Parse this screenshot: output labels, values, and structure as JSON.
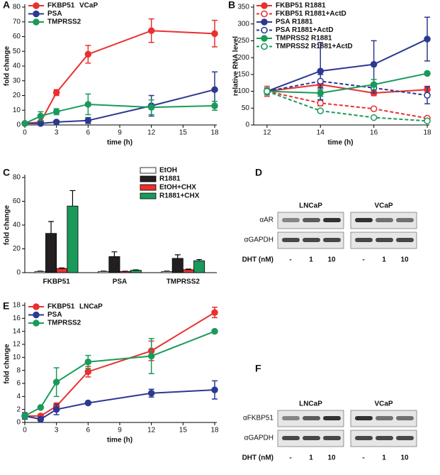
{
  "chart_data": [
    {
      "type": "line",
      "panel": "A",
      "annotation": "VCaP",
      "xlabel": "time (h)",
      "ylabel": "fold change",
      "x": [
        0,
        1.5,
        3,
        6,
        12,
        18
      ],
      "xlim": [
        0,
        18
      ],
      "xticks": [
        0,
        3,
        6,
        9,
        12,
        15,
        18
      ],
      "ylim": [
        0,
        80
      ],
      "yticks": [
        0,
        10,
        20,
        30,
        40,
        50,
        60,
        70,
        80
      ],
      "series": [
        {
          "name": "FKBP51",
          "color": "#e8312f",
          "values": [
            1,
            2,
            22,
            48,
            64,
            62
          ],
          "errors": [
            0.5,
            1,
            2,
            6,
            8,
            9
          ]
        },
        {
          "name": "PSA",
          "color": "#2b3990",
          "values": [
            1,
            1,
            2,
            3,
            13,
            24
          ],
          "errors": [
            0.5,
            0.5,
            1,
            2,
            7,
            12
          ]
        },
        {
          "name": "TMPRSS2",
          "color": "#1a9a5a",
          "values": [
            1,
            6,
            9,
            14,
            12,
            13
          ],
          "errors": [
            0.5,
            3,
            2,
            7,
            5,
            3
          ]
        }
      ]
    },
    {
      "type": "line",
      "panel": "B",
      "xlabel": "time (h)",
      "ylabel": "relative RNA level",
      "x": [
        12,
        14,
        16,
        18
      ],
      "xlim": [
        11.5,
        18
      ],
      "xticks": [
        12,
        14,
        16,
        18
      ],
      "ylim": [
        0,
        350
      ],
      "yticks": [
        0,
        50,
        100,
        150,
        200,
        250,
        300,
        350
      ],
      "series": [
        {
          "name": "FKBP51 R1881",
          "color": "#e8312f",
          "dashed": false,
          "marker": "filled",
          "values": [
            100,
            120,
            95,
            105
          ],
          "errors": [
            15,
            10,
            8,
            10
          ]
        },
        {
          "name": "FKBP51 R1881+ActD",
          "color": "#e8312f",
          "dashed": true,
          "marker": "open",
          "values": [
            100,
            65,
            48,
            20
          ],
          "errors": [
            5,
            8,
            5,
            3
          ]
        },
        {
          "name": "PSA R1881",
          "color": "#2b3990",
          "dashed": false,
          "marker": "filled",
          "values": [
            100,
            160,
            180,
            255
          ],
          "errors": [
            10,
            85,
            70,
            65
          ]
        },
        {
          "name": "PSA R1881+ActD",
          "color": "#2b3990",
          "dashed": true,
          "marker": "open",
          "values": [
            100,
            130,
            110,
            88
          ],
          "errors": [
            10,
            20,
            15,
            25
          ]
        },
        {
          "name": "TMPRSS2 R1881",
          "color": "#1a9a5a",
          "dashed": false,
          "marker": "filled",
          "values": [
            100,
            95,
            120,
            153
          ],
          "errors": [
            10,
            10,
            15,
            5
          ]
        },
        {
          "name": "TMPRSS2 R1881+ActD",
          "color": "#1a9a5a",
          "dashed": true,
          "marker": "open",
          "values": [
            100,
            42,
            22,
            12
          ],
          "errors": [
            5,
            5,
            3,
            2
          ]
        }
      ]
    },
    {
      "type": "bar",
      "panel": "C",
      "ylabel": "fold change",
      "categories": [
        "FKBP51",
        "PSA",
        "TMPRSS2"
      ],
      "ylim": [
        0,
        80
      ],
      "yticks": [
        0,
        20,
        40,
        60,
        80
      ],
      "series": [
        {
          "name": "EtOH",
          "color": "#ffffff",
          "values": [
            1,
            1,
            1
          ],
          "errors": [
            0.3,
            0.3,
            0.3
          ]
        },
        {
          "name": "R1881",
          "color": "#231f20",
          "values": [
            33,
            13.5,
            12
          ],
          "errors": [
            10,
            4,
            3
          ]
        },
        {
          "name": "EtOH+CHX",
          "color": "#e8312f",
          "values": [
            3.5,
            1,
            2.5
          ],
          "errors": [
            0.5,
            0.2,
            0.5
          ]
        },
        {
          "name": "R1881+CHX",
          "color": "#1a9a5a",
          "values": [
            56,
            2,
            10
          ],
          "errors": [
            13,
            0.3,
            1
          ]
        }
      ]
    },
    {
      "type": "line",
      "panel": "E",
      "annotation": "LNCaP",
      "xlabel": "time (h)",
      "ylabel": "fold change",
      "x": [
        0,
        1.5,
        3,
        6,
        12,
        18
      ],
      "xlim": [
        0,
        18
      ],
      "xticks": [
        0,
        3,
        6,
        9,
        12,
        15,
        18
      ],
      "ylim": [
        0,
        18
      ],
      "yticks": [
        0,
        2,
        4,
        6,
        8,
        10,
        12,
        14,
        16,
        18
      ],
      "series": [
        {
          "name": "FKBP51",
          "color": "#e8312f",
          "values": [
            1,
            1,
            2.5,
            7.8,
            11,
            16.9
          ],
          "errors": [
            0.5,
            0.3,
            0.5,
            0.8,
            1.5,
            0.8
          ]
        },
        {
          "name": "PSA",
          "color": "#2b3990",
          "values": [
            1,
            0.5,
            2,
            3,
            4.5,
            5
          ],
          "errors": [
            0.5,
            0.3,
            0.8,
            0.2,
            0.6,
            1.4
          ]
        },
        {
          "name": "TMPRSS2",
          "color": "#1a9a5a",
          "values": [
            1,
            2.3,
            6.2,
            9.3,
            10.2,
            14
          ],
          "errors": [
            0.3,
            0.2,
            2.2,
            1,
            2.7,
            0.2
          ]
        }
      ]
    }
  ],
  "blots": [
    {
      "panel": "D",
      "groups": [
        "LNCaP",
        "VCaP"
      ],
      "rows": [
        "αAR",
        "αGAPDH"
      ],
      "treatment": "DHT (nM)",
      "lanes": [
        "-",
        "1",
        "10",
        "-",
        "1",
        "10"
      ]
    },
    {
      "panel": "F",
      "groups": [
        "LNCaP",
        "VCaP"
      ],
      "rows": [
        "αFKBP51",
        "αGAPDH"
      ],
      "treatment": "DHT (nM)",
      "lanes": [
        "-",
        "1",
        "10",
        "-",
        "1",
        "10"
      ]
    }
  ]
}
